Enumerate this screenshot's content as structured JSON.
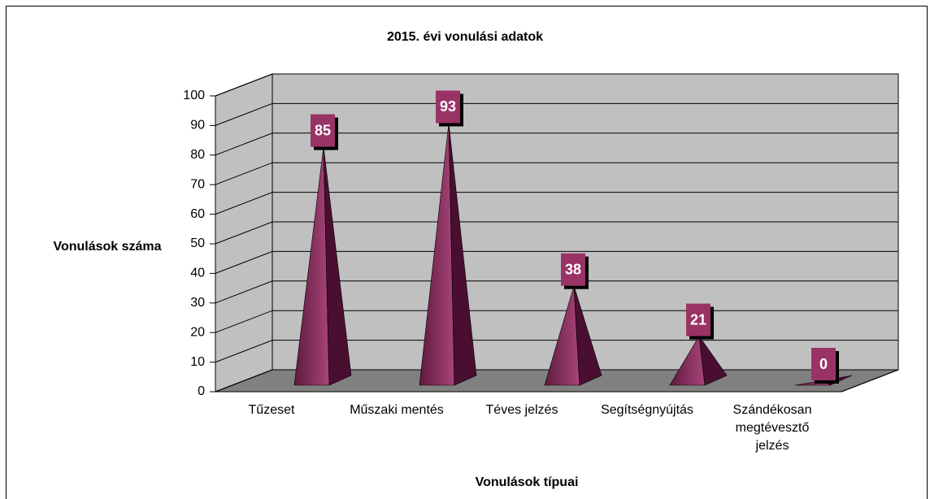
{
  "chart_data": {
    "type": "pyramid3d",
    "title": "2015. évi vonulási adatok",
    "y_label": "Vonulások száma",
    "x_label": "Vonulások típuai",
    "categories": [
      "Tűzeset",
      "Műszaki mentés",
      "Téves jelzés",
      "Segítségnyújtás",
      "Szándékosan\nmegtévesztő\njelzés"
    ],
    "values": [
      85,
      93,
      38,
      21,
      0
    ],
    "color": "#993366",
    "ylim": [
      0,
      100
    ],
    "yticks": [
      0,
      10,
      20,
      30,
      40,
      50,
      60,
      70,
      80,
      90,
      100
    ],
    "grid": true
  }
}
